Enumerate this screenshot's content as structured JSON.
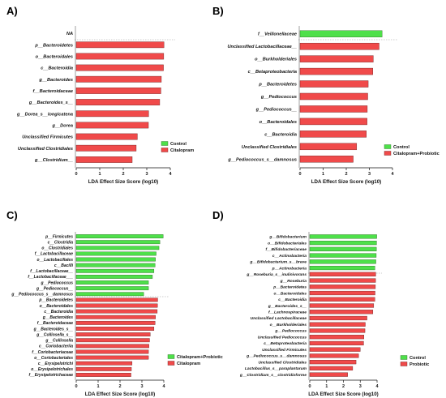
{
  "colors": {
    "red": "#f04a4a",
    "green": "#4ee04a",
    "red_stroke": "#6a1c1c",
    "green_stroke": "#2a6a22",
    "axis": "#111111"
  },
  "chart_data": [
    {
      "panel_label": "A)",
      "type": "bar",
      "orientation": "horizontal",
      "xlabel": "LDA Effect Size Score (log10)",
      "xlim": [
        0,
        4
      ],
      "xticks": [
        "0",
        "1",
        "2",
        "3",
        "4"
      ],
      "legend": [
        {
          "name": "Control",
          "color": "green"
        },
        {
          "name": "Citalopram",
          "color": "red"
        }
      ],
      "legend_placement": "bottom-right",
      "groups": [
        {
          "name": "Control",
          "color": "green",
          "categories": [
            "NA"
          ],
          "values": [
            0
          ]
        },
        {
          "name": "Citalopram",
          "color": "red",
          "categories": [
            "p__Bacteroidetes",
            "o__Bacteroidales",
            "c__Bacteroidia",
            "g__Bacteroides",
            "f__Bacteroidaceae",
            "g__Bacteroides_s__",
            "g__Dorea_s__longicatena",
            "g__Dorea",
            "Unclassified Firmicutes",
            "Unclassified Clostridiales",
            "g__Clostridium__"
          ],
          "values": [
            3.73,
            3.72,
            3.71,
            3.62,
            3.6,
            3.55,
            3.08,
            3.07,
            2.6,
            2.55,
            2.38
          ]
        }
      ]
    },
    {
      "panel_label": "B)",
      "type": "bar",
      "orientation": "horizontal",
      "xlabel": "LDA Effect Size Score (log10)",
      "xlim": [
        0,
        4
      ],
      "xticks": [
        "0",
        "1",
        "2",
        "3",
        "4"
      ],
      "legend": [
        {
          "name": "Control",
          "color": "green"
        },
        {
          "name": "Citalopram+Probiotic",
          "color": "red"
        }
      ],
      "legend_placement": "bottom-right",
      "groups": [
        {
          "name": "Control",
          "color": "green",
          "categories": [
            "f__Veillonellaceae"
          ],
          "values": [
            3.55
          ]
        },
        {
          "name": "Citalopram+Probiotic",
          "color": "red",
          "categories": [
            "Unclassified Lactobacillaceae__",
            "o__Burkholderiales",
            "c__Betaproteobacteria",
            "p__Bacteroidetes",
            "g__Pediococcus",
            "g__Pediococcus__",
            "o__Bacteroidales",
            "c__Bacteroidia",
            "Unclassified Clostridiales",
            "g__Pediococcus_s__damnosus"
          ],
          "values": [
            3.42,
            3.17,
            3.15,
            2.95,
            2.93,
            2.91,
            2.9,
            2.87,
            2.45,
            2.3
          ]
        }
      ]
    },
    {
      "panel_label": "C)",
      "type": "bar",
      "orientation": "horizontal",
      "xlabel": "LDA Effect Size Score (log10)",
      "xlim": [
        0,
        4
      ],
      "xticks": [
        "0",
        "1",
        "2",
        "3",
        "4"
      ],
      "legend": [
        {
          "name": "Citalopram+Probiotic",
          "color": "green"
        },
        {
          "name": "Citalopram",
          "color": "red"
        }
      ],
      "legend_placement": "bottom-right",
      "groups": [
        {
          "name": "Citalopram+Probiotic",
          "color": "green",
          "categories": [
            "p__Firmicutes",
            "c__Clostridia",
            "o__Clostridiales",
            "f__Lactobacillaceae",
            "o__Lactobacillales",
            "c__Bacilli",
            "f__Lactobacillaceae__",
            "f__Lactobacillaceae___",
            "g__Pediococcus",
            "g__Pediococcus__",
            "g__Pediococcus_s__damnosus"
          ],
          "values": [
            3.97,
            3.82,
            3.78,
            3.65,
            3.62,
            3.6,
            3.55,
            3.48,
            3.3,
            3.3,
            3.08
          ]
        },
        {
          "name": "Citalopram",
          "color": "red",
          "categories": [
            "p__Bacteroidetes",
            "o__Bacteroidales",
            "c__Bacteroidia",
            "g__Bacteroides",
            "f__Bacteroidaceae",
            "g__Bacteroides_s__",
            "g__Collinsella_s__",
            "g__Collinsella",
            "c__Coriobacteriia",
            "f__Coriobacteriaceae",
            "o__Coriobacteriales",
            "c__Erysipelotrichi",
            "o__Erysipelotrichales",
            "f__Erysipelotrichaceae"
          ],
          "values": [
            3.72,
            3.71,
            3.7,
            3.62,
            3.6,
            3.55,
            3.38,
            3.35,
            3.32,
            3.3,
            3.3,
            2.55,
            2.52,
            2.5
          ]
        }
      ]
    },
    {
      "panel_label": "D)",
      "type": "bar",
      "orientation": "horizontal",
      "xlabel": "LDA Effect Size Score (log10)",
      "xlim": [
        0,
        4
      ],
      "xticks": [
        "0",
        "1",
        "2",
        "3",
        "4"
      ],
      "legend": [
        {
          "name": "Control",
          "color": "green"
        },
        {
          "name": "Probiotic",
          "color": "red"
        }
      ],
      "legend_placement": "bottom-right",
      "groups": [
        {
          "name": "Control",
          "color": "green",
          "categories": [
            "g__Bifidobacterium",
            "o__Bifidobacteriales",
            "f__Bifidobacteriaceae",
            "c__Actinobacteria",
            "g__Bifidobacterium_s__breve",
            "p__Actinobacteria"
          ],
          "values": [
            3.98,
            3.97,
            3.96,
            3.95,
            3.93,
            3.87
          ]
        },
        {
          "name": "Probiotic",
          "color": "red",
          "categories": [
            "g__Roseburia_s__inulinivorans",
            "g__Roseburia",
            "p__Bacteroidetes",
            "o__Bacteroidales",
            "c__Bacteroidia",
            "g__Bacteroides_s__",
            "f__Lachnospiraceae",
            "Unclassified Lactobacillaceae",
            "o__Burkholderiales",
            "g__Pediococcus",
            "Unclassified Pediococcus",
            "c__Betaproteobacteria",
            "Unclassified Firmicutes",
            "g__Pediococcus_s__damnosus",
            "Unclassified Clostridiales",
            "Lactobacillus_s__paraplantarum",
            "g__Clostridium_s__clostridioforme"
          ],
          "values": [
            3.92,
            3.91,
            3.9,
            3.88,
            3.87,
            3.8,
            3.75,
            3.4,
            3.3,
            3.28,
            3.22,
            3.2,
            3.0,
            2.9,
            2.75,
            2.55,
            2.25
          ]
        }
      ]
    }
  ]
}
